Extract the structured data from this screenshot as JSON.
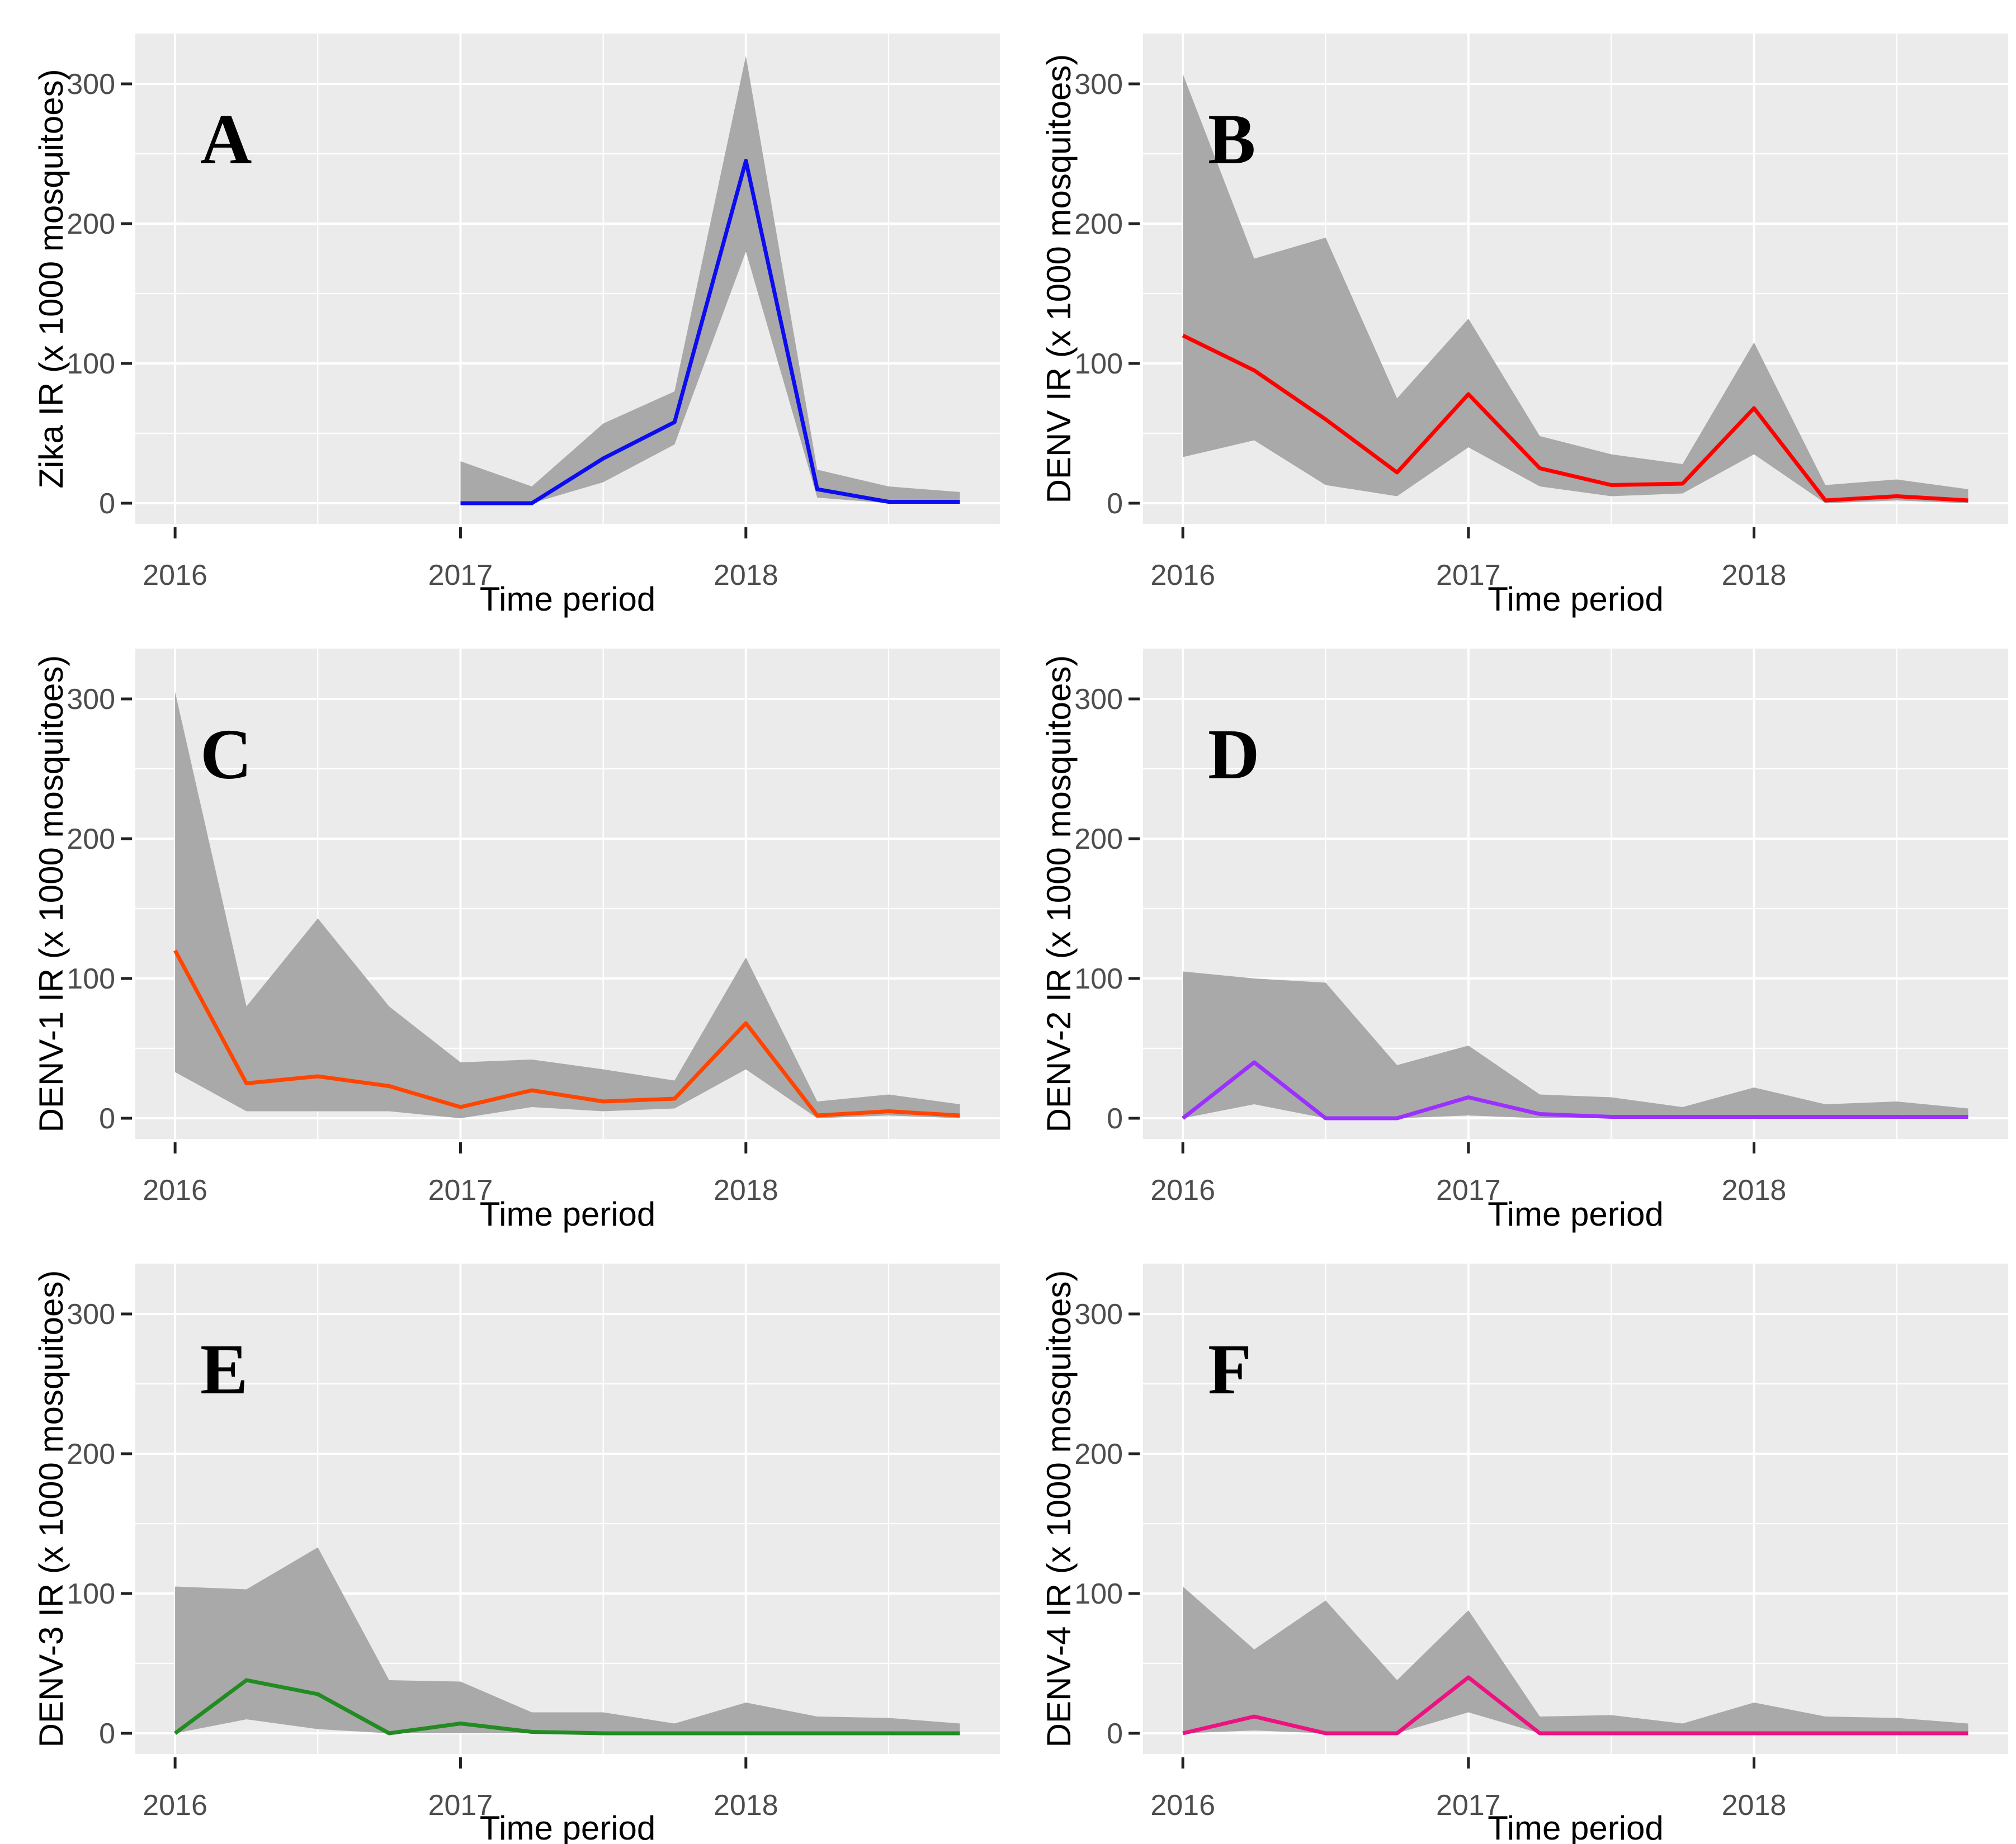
{
  "figure": {
    "background_color": "#ffffff",
    "panel_background_color": "#ebebeb",
    "gridline_color": "#ffffff",
    "ribbon_color": "#a9a9a9",
    "tick_mark_color": "#222222",
    "tick_label_color": "#4d4d4d",
    "axis_title_color": "#000000",
    "panel_letter_color": "#000000",
    "x_axis_title": "Time period",
    "panel_letters": [
      "A",
      "B",
      "C",
      "D",
      "E",
      "F"
    ]
  },
  "chart_data": [
    {
      "type": "line",
      "panel_label": "A",
      "xlabel": "Time period",
      "ylabel": "Zika IR (x 1000 mosquitoes)",
      "line_color": "#0c0cf0",
      "ribbon_color": "#a9a9a9",
      "x_ticks": [
        2016,
        2017,
        2018
      ],
      "y_ticks": [
        0,
        100,
        200,
        300
      ],
      "xlim": [
        2015.86,
        2018.89
      ],
      "ylim": [
        -15,
        336
      ],
      "grid": true,
      "legend": "none",
      "x": [
        2017,
        2017.25,
        2017.5,
        2017.75,
        2018,
        2018.25,
        2018.5,
        2018.75
      ],
      "y": [
        0,
        0,
        32,
        58,
        245,
        10,
        1,
        1
      ],
      "ribbon_lower": [
        0,
        0,
        15,
        42,
        180,
        4,
        0,
        0
      ],
      "ribbon_upper": [
        30,
        12,
        57,
        80,
        320,
        24,
        12,
        8
      ]
    },
    {
      "type": "line",
      "panel_label": "B",
      "xlabel": "Time period",
      "ylabel": "DENV IR (x 1000 mosquitoes)",
      "line_color": "#ff0000",
      "ribbon_color": "#a9a9a9",
      "x_ticks": [
        2016,
        2017,
        2018
      ],
      "y_ticks": [
        0,
        100,
        200,
        300
      ],
      "xlim": [
        2015.86,
        2018.89
      ],
      "ylim": [
        -15,
        336
      ],
      "grid": true,
      "legend": "none",
      "x": [
        2016,
        2016.25,
        2016.5,
        2016.75,
        2017,
        2017.25,
        2017.5,
        2017.75,
        2018,
        2018.25,
        2018.5,
        2018.75
      ],
      "y": [
        120,
        95,
        60,
        22,
        78,
        25,
        13,
        14,
        68,
        2,
        5,
        2
      ],
      "ribbon_lower": [
        33,
        45,
        13,
        5,
        40,
        12,
        5,
        7,
        35,
        0,
        2,
        0
      ],
      "ribbon_upper": [
        307,
        175,
        190,
        75,
        132,
        48,
        35,
        28,
        115,
        13,
        17,
        10
      ]
    },
    {
      "type": "line",
      "panel_label": "C",
      "xlabel": "Time period",
      "ylabel": "DENV-1 IR (x 1000 mosquitoes)",
      "line_color": "#ff4500",
      "ribbon_color": "#a9a9a9",
      "x_ticks": [
        2016,
        2017,
        2018
      ],
      "y_ticks": [
        0,
        100,
        200,
        300
      ],
      "xlim": [
        2015.86,
        2018.89
      ],
      "ylim": [
        -15,
        336
      ],
      "grid": true,
      "legend": "none",
      "x": [
        2016,
        2016.25,
        2016.5,
        2016.75,
        2017,
        2017.25,
        2017.5,
        2017.75,
        2018,
        2018.25,
        2018.5,
        2018.75
      ],
      "y": [
        120,
        25,
        30,
        23,
        8,
        20,
        12,
        14,
        68,
        2,
        5,
        2
      ],
      "ribbon_lower": [
        33,
        5,
        5,
        5,
        0,
        8,
        5,
        7,
        35,
        0,
        2,
        0
      ],
      "ribbon_upper": [
        305,
        80,
        143,
        80,
        40,
        42,
        35,
        27,
        115,
        12,
        17,
        10
      ]
    },
    {
      "type": "line",
      "panel_label": "D",
      "xlabel": "Time period",
      "ylabel": "DENV-2 IR (x 1000 mosquitoes)",
      "line_color": "#9b30ff",
      "ribbon_color": "#a9a9a9",
      "x_ticks": [
        2016,
        2017,
        2018
      ],
      "y_ticks": [
        0,
        100,
        200,
        300
      ],
      "xlim": [
        2015.86,
        2018.89
      ],
      "ylim": [
        -15,
        336
      ],
      "grid": true,
      "legend": "none",
      "x": [
        2016,
        2016.25,
        2016.5,
        2016.75,
        2017,
        2017.25,
        2017.5,
        2017.75,
        2018,
        2018.25,
        2018.5,
        2018.75
      ],
      "y": [
        0,
        40,
        0,
        0,
        15,
        3,
        1,
        1,
        1,
        1,
        1,
        1
      ],
      "ribbon_lower": [
        0,
        10,
        0,
        0,
        2,
        0,
        0,
        0,
        0,
        0,
        0,
        0
      ],
      "ribbon_upper": [
        105,
        100,
        97,
        38,
        52,
        17,
        15,
        8,
        22,
        10,
        12,
        7
      ]
    },
    {
      "type": "line",
      "panel_label": "E",
      "xlabel": "Time period",
      "ylabel": "DENV-3 IR (x 1000 mosquitoes)",
      "line_color": "#228b22",
      "ribbon_color": "#a9a9a9",
      "x_ticks": [
        2016,
        2017,
        2018
      ],
      "y_ticks": [
        0,
        100,
        200,
        300
      ],
      "xlim": [
        2015.86,
        2018.89
      ],
      "ylim": [
        -15,
        336
      ],
      "grid": true,
      "legend": "none",
      "x": [
        2016,
        2016.25,
        2016.5,
        2016.75,
        2017,
        2017.25,
        2017.5,
        2017.75,
        2018,
        2018.25,
        2018.5,
        2018.75
      ],
      "y": [
        0,
        38,
        28,
        0,
        7,
        1,
        0,
        0,
        0,
        0,
        0,
        0
      ],
      "ribbon_lower": [
        0,
        10,
        3,
        0,
        0,
        0,
        0,
        0,
        0,
        0,
        0,
        0
      ],
      "ribbon_upper": [
        105,
        103,
        133,
        38,
        37,
        15,
        15,
        7,
        22,
        12,
        11,
        7
      ]
    },
    {
      "type": "line",
      "panel_label": "F",
      "xlabel": "Time period",
      "ylabel": "DENV-4 IR (x 1000 mosquitoes)",
      "line_color": "#ec1380",
      "ribbon_color": "#a9a9a9",
      "x_ticks": [
        2016,
        2017,
        2018
      ],
      "y_ticks": [
        0,
        100,
        200,
        300
      ],
      "xlim": [
        2015.86,
        2018.89
      ],
      "ylim": [
        -15,
        336
      ],
      "grid": true,
      "legend": "none",
      "x": [
        2016,
        2016.25,
        2016.5,
        2016.75,
        2017,
        2017.25,
        2017.5,
        2017.75,
        2018,
        2018.25,
        2018.5,
        2018.75
      ],
      "y": [
        0,
        12,
        0,
        0,
        40,
        0,
        0,
        0,
        0,
        0,
        0,
        0
      ],
      "ribbon_lower": [
        0,
        2,
        0,
        0,
        15,
        0,
        0,
        0,
        0,
        0,
        0,
        0
      ],
      "ribbon_upper": [
        105,
        60,
        95,
        38,
        88,
        12,
        13,
        7,
        22,
        12,
        11,
        7
      ]
    }
  ]
}
